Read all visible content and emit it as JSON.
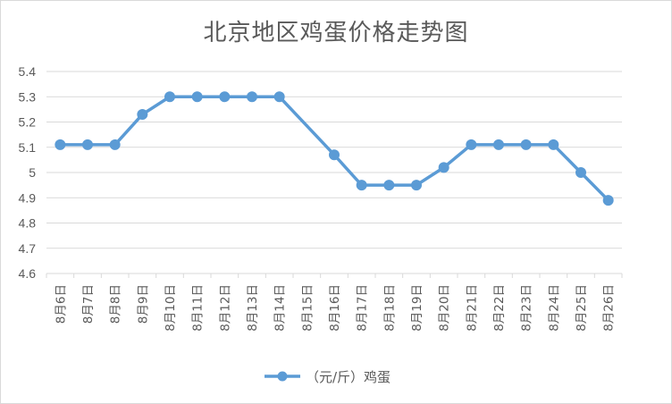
{
  "chart_data": {
    "type": "line",
    "title": "北京地区鸡蛋价格走势图",
    "xlabel": "",
    "ylabel": "",
    "categories": [
      "8月6日",
      "8月7日",
      "8月8日",
      "8月9日",
      "8月10日",
      "8月11日",
      "8月12日",
      "8月13日",
      "8月14日",
      "8月15日",
      "8月16日",
      "8月17日",
      "8月18日",
      "8月19日",
      "8月20日",
      "8月21日",
      "8月22日",
      "8月23日",
      "8月24日",
      "8月25日",
      "8月26日"
    ],
    "series": [
      {
        "name": "（元/斤）鸡蛋",
        "values": [
          5.11,
          5.11,
          5.11,
          5.23,
          5.3,
          5.3,
          5.3,
          5.3,
          5.3,
          null,
          5.07,
          4.95,
          4.95,
          4.95,
          5.02,
          5.11,
          5.11,
          5.11,
          5.11,
          5.0,
          4.89
        ],
        "color": "#5b9bd5"
      }
    ],
    "ylim": [
      4.6,
      5.4
    ],
    "yticks": [
      4.6,
      4.7,
      4.8,
      4.9,
      5,
      5.1,
      5.2,
      5.3,
      5.4
    ],
    "ytick_labels": [
      "4.6",
      "4.7",
      "4.8",
      "4.9",
      "5",
      "5.1",
      "5.2",
      "5.3",
      "5.4"
    ],
    "grid": true,
    "legend_position": "bottom",
    "gap_handling": "connect"
  }
}
